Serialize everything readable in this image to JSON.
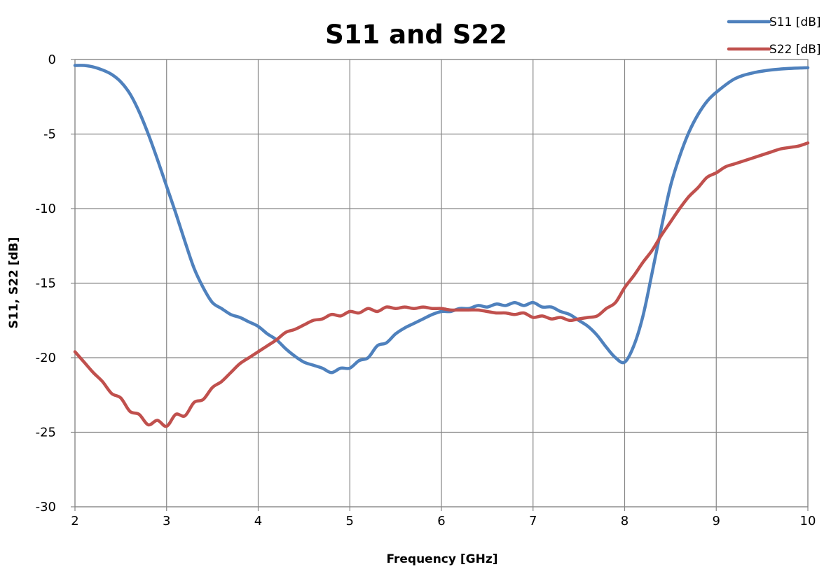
{
  "chart_data": {
    "type": "line",
    "title": "S11 and S22",
    "xlabel": "Frequency [GHz]",
    "ylabel": "S11, S22 [dB]",
    "xlim": [
      2,
      10
    ],
    "ylim": [
      -30,
      0
    ],
    "x_ticks": [
      "2",
      "3",
      "4",
      "5",
      "6",
      "7",
      "8",
      "9",
      "10"
    ],
    "y_ticks": [
      "0",
      "-5",
      "-10",
      "-15",
      "-20",
      "-25",
      "-30"
    ],
    "grid": true,
    "legend_position": "top-right",
    "series": [
      {
        "name": "S11 [dB]",
        "color": "#4f81bd",
        "x": [
          2.0,
          2.1,
          2.2,
          2.3,
          2.4,
          2.5,
          2.6,
          2.7,
          2.8,
          2.9,
          3.0,
          3.1,
          3.2,
          3.3,
          3.4,
          3.5,
          3.6,
          3.7,
          3.8,
          3.9,
          4.0,
          4.1,
          4.2,
          4.3,
          4.4,
          4.5,
          4.6,
          4.7,
          4.8,
          4.9,
          5.0,
          5.1,
          5.2,
          5.3,
          5.4,
          5.5,
          5.6,
          5.7,
          5.8,
          5.9,
          6.0,
          6.1,
          6.2,
          6.3,
          6.4,
          6.5,
          6.6,
          6.7,
          6.8,
          6.9,
          7.0,
          7.1,
          7.2,
          7.3,
          7.4,
          7.5,
          7.6,
          7.7,
          7.8,
          7.9,
          8.0,
          8.1,
          8.2,
          8.3,
          8.4,
          8.5,
          8.6,
          8.7,
          8.8,
          8.9,
          9.0,
          9.2,
          9.4,
          9.6,
          9.8,
          10.0
        ],
        "values": [
          -0.4,
          -0.4,
          -0.5,
          -0.7,
          -1.0,
          -1.5,
          -2.3,
          -3.5,
          -5.0,
          -6.7,
          -8.5,
          -10.3,
          -12.2,
          -14.0,
          -15.3,
          -16.3,
          -16.7,
          -17.1,
          -17.3,
          -17.6,
          -17.9,
          -18.4,
          -18.8,
          -19.4,
          -19.9,
          -20.3,
          -20.5,
          -20.7,
          -21.0,
          -20.7,
          -20.7,
          -20.2,
          -20.0,
          -19.2,
          -19.0,
          -18.4,
          -18.0,
          -17.7,
          -17.4,
          -17.1,
          -16.9,
          -16.9,
          -16.7,
          -16.7,
          -16.5,
          -16.6,
          -16.4,
          -16.5,
          -16.3,
          -16.5,
          -16.3,
          -16.6,
          -16.6,
          -16.9,
          -17.1,
          -17.5,
          -17.9,
          -18.5,
          -19.3,
          -20.0,
          -20.3,
          -19.2,
          -17.2,
          -14.3,
          -11.3,
          -8.5,
          -6.5,
          -4.9,
          -3.7,
          -2.8,
          -2.2,
          -1.3,
          -0.9,
          -0.7,
          -0.6,
          -0.55
        ]
      },
      {
        "name": "S22 [dB]",
        "color": "#c0504d",
        "x": [
          2.0,
          2.1,
          2.2,
          2.3,
          2.4,
          2.5,
          2.6,
          2.7,
          2.8,
          2.9,
          3.0,
          3.1,
          3.2,
          3.3,
          3.4,
          3.5,
          3.6,
          3.7,
          3.8,
          3.9,
          4.0,
          4.1,
          4.2,
          4.3,
          4.4,
          4.5,
          4.6,
          4.7,
          4.8,
          4.9,
          5.0,
          5.1,
          5.2,
          5.3,
          5.4,
          5.5,
          5.6,
          5.7,
          5.8,
          5.9,
          6.0,
          6.1,
          6.2,
          6.3,
          6.4,
          6.5,
          6.6,
          6.7,
          6.8,
          6.9,
          7.0,
          7.1,
          7.2,
          7.3,
          7.4,
          7.5,
          7.6,
          7.7,
          7.8,
          7.9,
          8.0,
          8.1,
          8.2,
          8.3,
          8.4,
          8.5,
          8.6,
          8.7,
          8.8,
          8.9,
          9.0,
          9.1,
          9.2,
          9.3,
          9.4,
          9.5,
          9.6,
          9.7,
          9.8,
          9.9,
          10.0
        ],
        "values": [
          -19.6,
          -20.3,
          -21.0,
          -21.6,
          -22.4,
          -22.7,
          -23.6,
          -23.8,
          -24.5,
          -24.2,
          -24.6,
          -23.8,
          -23.9,
          -23.0,
          -22.8,
          -22.0,
          -21.6,
          -21.0,
          -20.4,
          -20.0,
          -19.6,
          -19.2,
          -18.8,
          -18.3,
          -18.1,
          -17.8,
          -17.5,
          -17.4,
          -17.1,
          -17.2,
          -16.9,
          -17.0,
          -16.7,
          -16.9,
          -16.6,
          -16.7,
          -16.6,
          -16.7,
          -16.6,
          -16.7,
          -16.7,
          -16.8,
          -16.8,
          -16.8,
          -16.8,
          -16.9,
          -17.0,
          -17.0,
          -17.1,
          -17.0,
          -17.3,
          -17.2,
          -17.4,
          -17.3,
          -17.5,
          -17.4,
          -17.3,
          -17.2,
          -16.7,
          -16.3,
          -15.3,
          -14.5,
          -13.6,
          -12.8,
          -11.8,
          -10.9,
          -10.0,
          -9.2,
          -8.6,
          -7.9,
          -7.6,
          -7.2,
          -7.0,
          -6.8,
          -6.6,
          -6.4,
          -6.2,
          -6.0,
          -5.9,
          -5.8,
          -5.6
        ]
      }
    ]
  }
}
